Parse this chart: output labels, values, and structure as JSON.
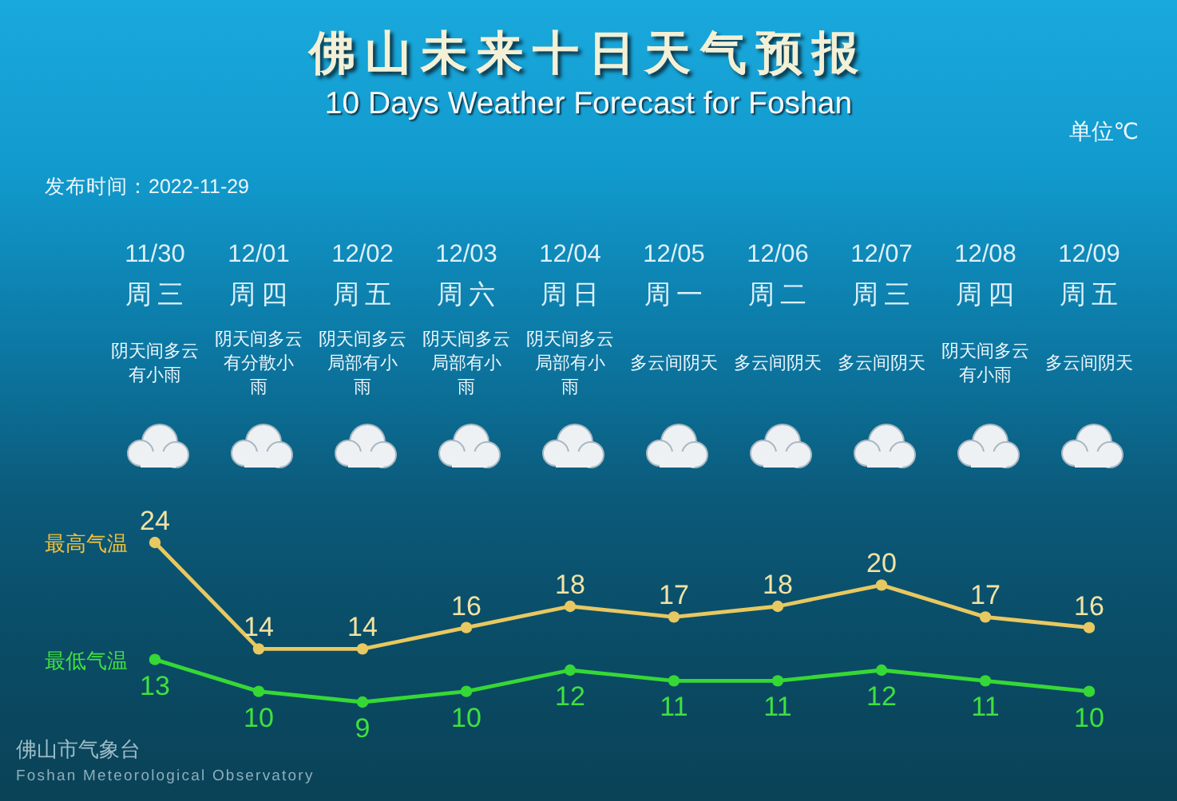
{
  "chart_data": {
    "type": "line",
    "title": "佛山未来十日天气预报",
    "subtitle": "10 Days Weather Forecast for Foshan",
    "annotations": [
      "单位℃",
      "发布时间：2022-11-29",
      "周三",
      "周四",
      "周五",
      "周六",
      "周日",
      "周一",
      "周二",
      "周三",
      "周四",
      "周五",
      "阴天间多云有小雨",
      "阴天间多云有分散小雨",
      "阴天间多云局部有小雨",
      "阴天间多云局部有小雨",
      "阴天间多云局部有小雨",
      "多云间阴天",
      "多云间阴天",
      "多云间阴天",
      "阴天间多云有小雨",
      "多云间阴天",
      "佛山市气象台",
      "Foshan Meteorological Observatory"
    ],
    "categories": [
      "11/30",
      "12/01",
      "12/02",
      "12/03",
      "12/04",
      "12/05",
      "12/06",
      "12/07",
      "12/08",
      "12/09"
    ],
    "series": [
      {
        "name": "最高气温",
        "color": "#e8c860",
        "values": [
          24,
          14,
          14,
          16,
          18,
          17,
          18,
          20,
          17,
          16
        ]
      },
      {
        "name": "最低气温",
        "color": "#36d836",
        "values": [
          13,
          10,
          9,
          10,
          12,
          11,
          11,
          12,
          11,
          10
        ]
      }
    ],
    "data_labels": true,
    "marker": "circle",
    "line_style": "solid"
  }
}
